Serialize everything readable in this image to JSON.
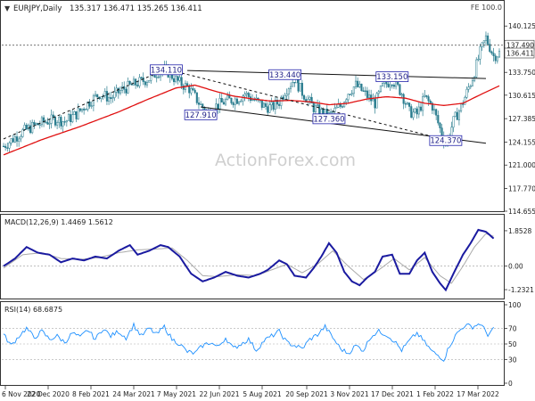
{
  "header": {
    "symbol_triangle": "▼",
    "title": "EURJPY,Daily",
    "ohlc": "135.317 136.471 135.265 136.411",
    "fe_label": "FE 100.0"
  },
  "watermark": "ActionForex.com",
  "colors": {
    "candle_up": "#2a7d8f",
    "candle_down": "#2a7d8f",
    "ma": "#e01010",
    "macd": "#1a1aa0",
    "signal": "#aaaaaa",
    "rsi": "#1e90ff",
    "trend": "#111111",
    "label_border": "#2222aa"
  },
  "chart_data": [
    {
      "type": "candlestick",
      "panel": "price",
      "title": "EURJPY,Daily",
      "x_ticks": [
        "6 Nov 2020",
        "22 Dec 2020",
        "8 Feb 2021",
        "24 Mar 2021",
        "7 May 2021",
        "22 Jun 2021",
        "5 Aug 2021",
        "20 Sep 2021",
        "3 Nov 2021",
        "17 Dec 2021",
        "1 Feb 2022",
        "17 Mar 2022"
      ],
      "y_ticks": [
        "140.125",
        "133.750",
        "130.615",
        "127.385",
        "124.155",
        "121.000",
        "117.770",
        "114.655"
      ],
      "ylim": [
        114.655,
        141.5
      ],
      "close_path": [
        [
          0,
          123.6
        ],
        [
          5,
          124.6
        ],
        [
          10,
          125.6
        ],
        [
          16,
          126.4
        ],
        [
          22,
          127.0
        ],
        [
          28,
          127.3
        ],
        [
          32,
          127.0
        ],
        [
          38,
          128.0
        ],
        [
          44,
          129.5
        ],
        [
          50,
          130.8
        ],
        [
          56,
          130.2
        ],
        [
          62,
          131.4
        ],
        [
          70,
          132.3
        ],
        [
          76,
          132.9
        ],
        [
          81,
          133.9
        ],
        [
          85,
          134.0
        ],
        [
          91,
          132.5
        ],
        [
          97,
          131.5
        ],
        [
          103,
          129.2
        ],
        [
          107,
          128.2
        ],
        [
          110,
          129.0
        ],
        [
          116,
          129.8
        ],
        [
          122,
          130.1
        ],
        [
          126,
          130.8
        ],
        [
          130,
          130.1
        ],
        [
          136,
          129.1
        ],
        [
          140,
          128.9
        ],
        [
          144,
          129.7
        ],
        [
          147,
          131.2
        ],
        [
          152,
          132.9
        ],
        [
          156,
          131.0
        ],
        [
          162,
          128.9
        ],
        [
          166,
          128.2
        ],
        [
          170,
          127.8
        ],
        [
          176,
          129.1
        ],
        [
          180,
          131.0
        ],
        [
          184,
          132.0
        ],
        [
          190,
          130.5
        ],
        [
          194,
          129.5
        ],
        [
          198,
          131.8
        ],
        [
          203,
          132.8
        ],
        [
          208,
          130.9
        ],
        [
          212,
          128.3
        ],
        [
          216,
          128.0
        ],
        [
          220,
          130.3
        ],
        [
          224,
          129.1
        ],
        [
          228,
          126.0
        ],
        [
          231,
          124.0
        ],
        [
          235,
          127.0
        ],
        [
          239,
          129.0
        ],
        [
          245,
          133.0
        ],
        [
          249,
          136.5
        ],
        [
          252,
          138.5
        ],
        [
          256,
          136.0
        ],
        [
          259,
          136.4
        ]
      ],
      "moving_average": [
        [
          0,
          122.4
        ],
        [
          20,
          124.5
        ],
        [
          40,
          126.3
        ],
        [
          60,
          128.3
        ],
        [
          75,
          130.0
        ],
        [
          90,
          131.6
        ],
        [
          100,
          132.0
        ],
        [
          110,
          131.2
        ],
        [
          120,
          130.5
        ],
        [
          130,
          130.1
        ],
        [
          140,
          129.8
        ],
        [
          150,
          129.9
        ],
        [
          160,
          129.7
        ],
        [
          170,
          129.3
        ],
        [
          180,
          129.5
        ],
        [
          190,
          130.1
        ],
        [
          200,
          130.4
        ],
        [
          210,
          130.2
        ],
        [
          220,
          129.5
        ],
        [
          230,
          129.2
        ],
        [
          240,
          129.5
        ],
        [
          250,
          130.8
        ],
        [
          259,
          131.9
        ]
      ],
      "last_price": 136.411,
      "dashed_level": 137.49,
      "annotations": [
        {
          "text": "134.110",
          "x": 85,
          "y": 134.11
        },
        {
          "text": "133.440",
          "x": 147,
          "y": 133.44
        },
        {
          "text": "133.150",
          "x": 203,
          "y": 133.15
        },
        {
          "text": "127.910",
          "x": 103,
          "y": 127.91
        },
        {
          "text": "127.360",
          "x": 170,
          "y": 127.36
        },
        {
          "text": "124.370",
          "x": 231,
          "y": 124.37
        }
      ],
      "trend_lines": [
        {
          "style": "dashed",
          "from": [
            0,
            124.6
          ],
          "to": [
            85,
            134.2
          ]
        },
        {
          "style": "dashed",
          "from": [
            85,
            134.2
          ],
          "to": [
            238,
            124.0
          ]
        },
        {
          "style": "solid",
          "from": [
            96,
            134.0
          ],
          "to": [
            252,
            132.9
          ]
        },
        {
          "style": "solid",
          "from": [
            103,
            129.0
          ],
          "to": [
            252,
            124.0
          ]
        }
      ]
    },
    {
      "type": "line",
      "panel": "macd",
      "title": "MACD(12,26,9) 1.4469 1.5612",
      "y_ticks": [
        "1.8528",
        "0.00",
        "-1.2321"
      ],
      "ylim": [
        -1.65,
        2.55
      ],
      "series": [
        {
          "name": "MACD",
          "points": [
            [
              0,
              0.0
            ],
            [
              6,
              0.4
            ],
            [
              12,
              1.0
            ],
            [
              18,
              0.7
            ],
            [
              24,
              0.6
            ],
            [
              30,
              0.2
            ],
            [
              36,
              0.4
            ],
            [
              42,
              0.3
            ],
            [
              48,
              0.5
            ],
            [
              54,
              0.4
            ],
            [
              60,
              0.8
            ],
            [
              66,
              1.1
            ],
            [
              70,
              0.6
            ],
            [
              76,
              0.8
            ],
            [
              82,
              1.1
            ],
            [
              86,
              1.0
            ],
            [
              92,
              0.5
            ],
            [
              98,
              -0.4
            ],
            [
              104,
              -0.8
            ],
            [
              110,
              -0.6
            ],
            [
              116,
              -0.3
            ],
            [
              122,
              -0.5
            ],
            [
              128,
              -0.6
            ],
            [
              134,
              -0.4
            ],
            [
              138,
              -0.2
            ],
            [
              144,
              0.3
            ],
            [
              148,
              0.1
            ],
            [
              152,
              -0.5
            ],
            [
              158,
              -0.6
            ],
            [
              162,
              -0.1
            ],
            [
              166,
              0.5
            ],
            [
              170,
              1.2
            ],
            [
              174,
              0.7
            ],
            [
              178,
              -0.3
            ],
            [
              182,
              -0.8
            ],
            [
              186,
              -1.0
            ],
            [
              190,
              -0.6
            ],
            [
              194,
              -0.3
            ],
            [
              198,
              0.5
            ],
            [
              203,
              0.6
            ],
            [
              207,
              -0.4
            ],
            [
              212,
              -0.4
            ],
            [
              216,
              0.3
            ],
            [
              220,
              0.7
            ],
            [
              224,
              -0.3
            ],
            [
              228,
              -0.9
            ],
            [
              231,
              -1.25
            ],
            [
              235,
              -0.4
            ],
            [
              240,
              0.6
            ],
            [
              244,
              1.2
            ],
            [
              248,
              1.9
            ],
            [
              252,
              1.8
            ],
            [
              256,
              1.45
            ]
          ]
        },
        {
          "name": "Signal",
          "points": [
            [
              0,
              -0.1
            ],
            [
              10,
              0.6
            ],
            [
              20,
              0.7
            ],
            [
              30,
              0.4
            ],
            [
              40,
              0.35
            ],
            [
              50,
              0.45
            ],
            [
              60,
              0.7
            ],
            [
              70,
              0.85
            ],
            [
              80,
              0.9
            ],
            [
              88,
              0.95
            ],
            [
              96,
              0.3
            ],
            [
              104,
              -0.5
            ],
            [
              112,
              -0.55
            ],
            [
              122,
              -0.45
            ],
            [
              132,
              -0.5
            ],
            [
              140,
              -0.2
            ],
            [
              148,
              0.1
            ],
            [
              156,
              -0.35
            ],
            [
              164,
              0.1
            ],
            [
              172,
              0.8
            ],
            [
              180,
              0.0
            ],
            [
              188,
              -0.7
            ],
            [
              196,
              -0.2
            ],
            [
              204,
              0.4
            ],
            [
              212,
              -0.2
            ],
            [
              220,
              0.45
            ],
            [
              228,
              -0.5
            ],
            [
              234,
              -0.9
            ],
            [
              240,
              0.0
            ],
            [
              246,
              1.0
            ],
            [
              252,
              1.7
            ],
            [
              256,
              1.56
            ]
          ]
        }
      ]
    },
    {
      "type": "line",
      "panel": "rsi",
      "title": "RSI(14) 68.6875",
      "y_ticks": [
        "100",
        "70",
        "50",
        "30",
        "0"
      ],
      "ylim": [
        0,
        100
      ],
      "reference_levels": [
        70,
        50,
        30
      ],
      "series": [
        {
          "name": "RSI",
          "points": [
            [
              0,
              62
            ],
            [
              4,
              48
            ],
            [
              8,
              60
            ],
            [
              12,
              70
            ],
            [
              16,
              58
            ],
            [
              20,
              66
            ],
            [
              24,
              56
            ],
            [
              28,
              60
            ],
            [
              32,
              52
            ],
            [
              36,
              64
            ],
            [
              40,
              58
            ],
            [
              44,
              68
            ],
            [
              48,
              56
            ],
            [
              52,
              70
            ],
            [
              56,
              60
            ],
            [
              60,
              66
            ],
            [
              64,
              58
            ],
            [
              68,
              74
            ],
            [
              72,
              60
            ],
            [
              76,
              70
            ],
            [
              80,
              62
            ],
            [
              84,
              72
            ],
            [
              88,
              56
            ],
            [
              92,
              50
            ],
            [
              96,
              40
            ],
            [
              100,
              38
            ],
            [
              104,
              48
            ],
            [
              108,
              52
            ],
            [
              112,
              46
            ],
            [
              116,
              58
            ],
            [
              120,
              44
            ],
            [
              124,
              50
            ],
            [
              128,
              56
            ],
            [
              132,
              42
            ],
            [
              136,
              54
            ],
            [
              140,
              60
            ],
            [
              144,
              66
            ],
            [
              148,
              52
            ],
            [
              152,
              48
            ],
            [
              156,
              44
            ],
            [
              160,
              56
            ],
            [
              164,
              62
            ],
            [
              168,
              72
            ],
            [
              172,
              58
            ],
            [
              176,
              44
            ],
            [
              180,
              38
            ],
            [
              184,
              48
            ],
            [
              188,
              42
            ],
            [
              192,
              60
            ],
            [
              196,
              66
            ],
            [
              200,
              62
            ],
            [
              204,
              54
            ],
            [
              208,
              42
            ],
            [
              212,
              54
            ],
            [
              216,
              64
            ],
            [
              220,
              52
            ],
            [
              224,
              40
            ],
            [
              228,
              34
            ],
            [
              230,
              30
            ],
            [
              233,
              48
            ],
            [
              237,
              64
            ],
            [
              241,
              74
            ],
            [
              245,
              72
            ],
            [
              249,
              76
            ],
            [
              253,
              62
            ],
            [
              256,
              68.69
            ]
          ]
        }
      ]
    }
  ]
}
